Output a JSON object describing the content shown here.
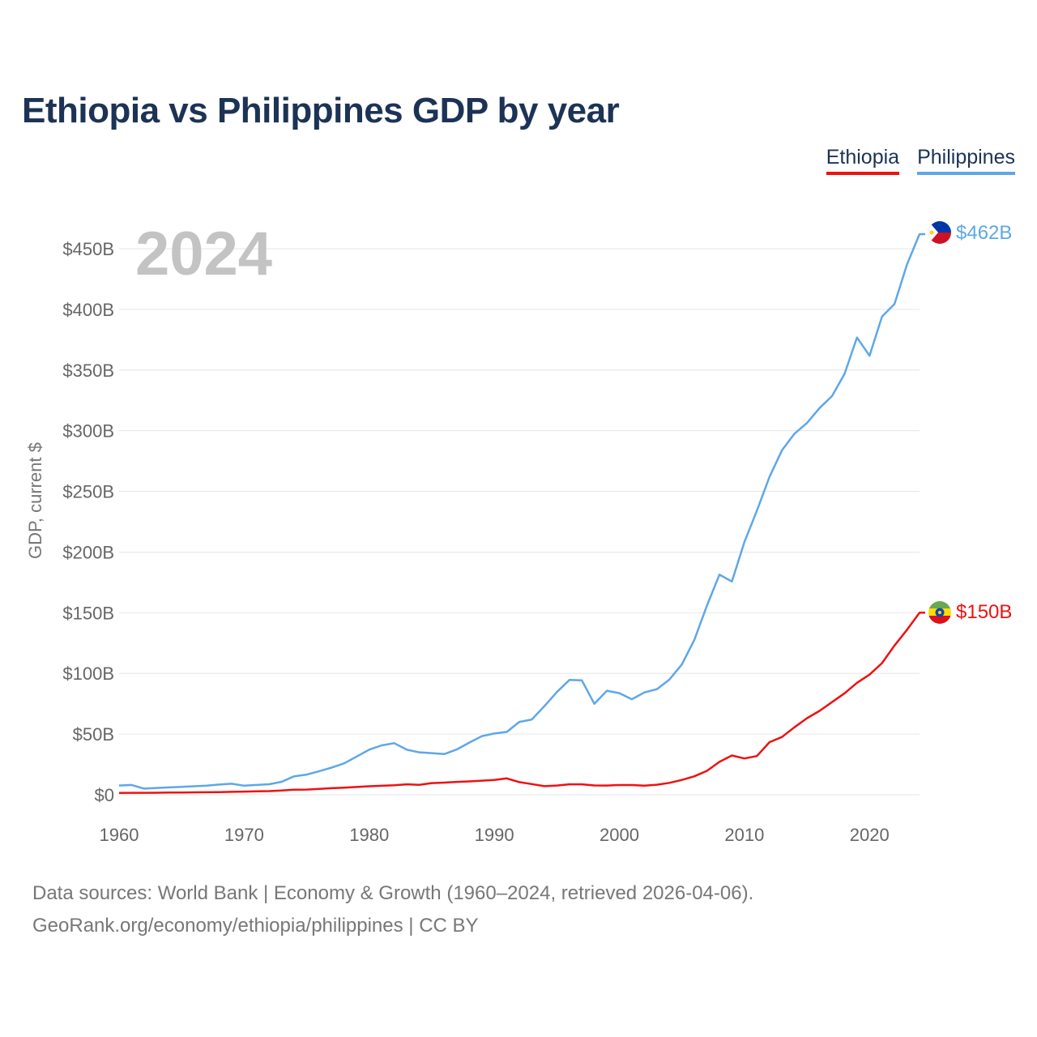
{
  "title": "Ethiopia vs Philippines GDP by year",
  "legend": [
    {
      "label": "Ethiopia",
      "color": "#ee1111"
    },
    {
      "label": "Philippines",
      "color": "#5ea7e8"
    }
  ],
  "ylabel": "GDP, current $",
  "year_display": "2024",
  "source_line1": "Data sources: World Bank | Economy & Growth (1960–2024, retrieved 2026-04-06).",
  "source_line2": "GeoRank.org/economy/ethiopia/philippines | CC BY",
  "chart_data": {
    "type": "line",
    "title": "Ethiopia vs Philippines GDP by year",
    "xlabel": "",
    "ylabel": "GDP, current $",
    "xlim": [
      1960,
      2024
    ],
    "ylim": [
      0,
      450
    ],
    "y_unit": "billions USD",
    "xticks": [
      1960,
      1970,
      1980,
      1990,
      2000,
      2010,
      2020
    ],
    "yticks": [
      {
        "value": 0,
        "label": "$0"
      },
      {
        "value": 50,
        "label": "$50B"
      },
      {
        "value": 100,
        "label": "$100B"
      },
      {
        "value": 150,
        "label": "$150B"
      },
      {
        "value": 200,
        "label": "$200B"
      },
      {
        "value": 250,
        "label": "$250B"
      },
      {
        "value": 300,
        "label": "$300B"
      },
      {
        "value": 350,
        "label": "$350B"
      },
      {
        "value": 400,
        "label": "$400B"
      },
      {
        "value": 450,
        "label": "$450B"
      }
    ],
    "grid": true,
    "legend_position": "top-right",
    "x": [
      1960,
      1961,
      1962,
      1963,
      1964,
      1965,
      1966,
      1967,
      1968,
      1969,
      1970,
      1971,
      1972,
      1973,
      1974,
      1975,
      1976,
      1977,
      1978,
      1979,
      1980,
      1981,
      1982,
      1983,
      1984,
      1985,
      1986,
      1987,
      1988,
      1989,
      1990,
      1991,
      1992,
      1993,
      1994,
      1995,
      1996,
      1997,
      1998,
      1999,
      2000,
      2001,
      2002,
      2003,
      2004,
      2005,
      2006,
      2007,
      2008,
      2009,
      2010,
      2011,
      2012,
      2013,
      2014,
      2015,
      2016,
      2017,
      2018,
      2019,
      2020,
      2021,
      2022,
      2023,
      2024
    ],
    "series": [
      {
        "name": "Philippines",
        "color": "#5ea7e8",
        "end_label": "$462B",
        "values": [
          7.6,
          8.1,
          5.1,
          5.6,
          6.1,
          6.5,
          7.0,
          7.5,
          8.4,
          9.1,
          7.5,
          8.1,
          8.7,
          10.7,
          15.2,
          16.6,
          19.4,
          22.4,
          25.9,
          31.5,
          37.2,
          40.7,
          42.5,
          37.1,
          35.0,
          34.3,
          33.5,
          37.3,
          43.0,
          48.3,
          50.5,
          51.8,
          60.0,
          62.0,
          73.0,
          84.6,
          94.6,
          94.3,
          75.0,
          85.7,
          83.7,
          78.7,
          84.3,
          87.0,
          95.0,
          107.4,
          127.7,
          155.9,
          181.4,
          175.7,
          208.4,
          234.2,
          261.9,
          283.9,
          297.5,
          306.4,
          318.6,
          328.5,
          346.8,
          376.8,
          361.8,
          394.1,
          404.4,
          437.1,
          462.0
        ]
      },
      {
        "name": "Ethiopia",
        "color": "#ee1111",
        "end_label": "$150B",
        "values": [
          1.5,
          1.6,
          1.6,
          1.7,
          1.8,
          1.9,
          2.0,
          2.1,
          2.2,
          2.4,
          2.6,
          2.8,
          3.0,
          3.5,
          4.2,
          4.3,
          4.8,
          5.4,
          5.9,
          6.4,
          7.0,
          7.4,
          7.8,
          8.6,
          8.2,
          9.6,
          10.0,
          10.6,
          11.0,
          11.6,
          12.2,
          13.5,
          10.4,
          8.8,
          7.1,
          7.6,
          8.6,
          8.6,
          7.7,
          7.6,
          8.0,
          8.0,
          7.5,
          8.3,
          9.8,
          12.2,
          15.2,
          19.7,
          27.1,
          32.4,
          29.9,
          31.9,
          43.3,
          47.6,
          55.6,
          63.1,
          69.1,
          76.3,
          83.6,
          92.3,
          99.0,
          108.5,
          123.0,
          136.0,
          150.0
        ]
      }
    ]
  }
}
